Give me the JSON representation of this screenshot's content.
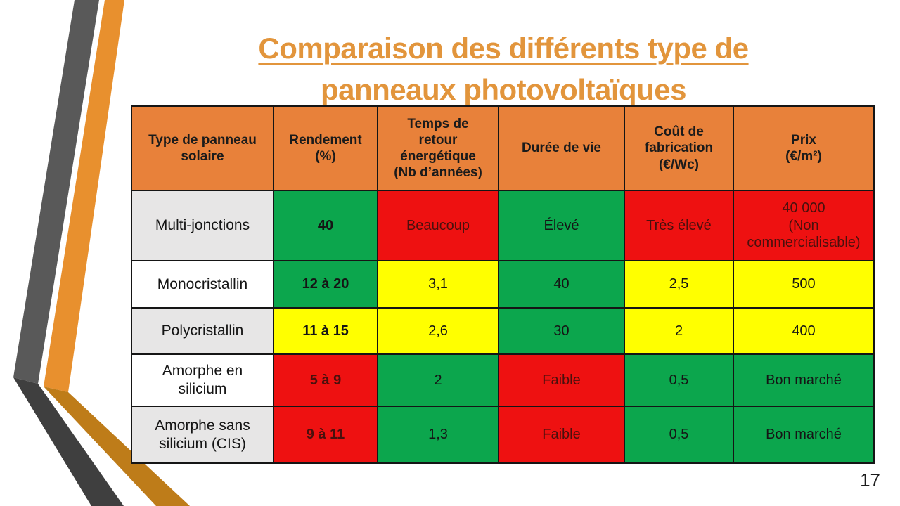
{
  "slide": {
    "title_lines": [
      "Comparaison des différents type de",
      "panneaux photovoltaïques"
    ],
    "page_number": "17"
  },
  "palette": {
    "title_orange": "#E2953C",
    "header_orange": "#E8813A",
    "green": "#0CA64D",
    "red": "#EE1111",
    "yellow": "#FFFF00",
    "gray": "#E7E6E6",
    "white": "#FFFFFF",
    "ribbon_gray": "#595959",
    "ribbon_orange": "#E8902E",
    "ribbon_dark_gray": "#3F3F3F",
    "ribbon_dark_orange": "#BE7C19"
  },
  "table": {
    "headers": [
      "Type de panneau\nsolaire",
      "Rendement\n(%)",
      "Temps de\nretour\nénergétique\n(Nb d’années)",
      "Durée de vie",
      "Coût de\nfabrication\n(€/Wc)",
      "Prix\n(€/m²)"
    ],
    "rows": [
      {
        "label": "Multi-jonctions",
        "label_bg": "gray",
        "cells": [
          {
            "text": "40",
            "color": "green",
            "bold": true
          },
          {
            "text": "Beaucoup",
            "color": "red"
          },
          {
            "text": "Élevé",
            "color": "green"
          },
          {
            "text": "Très élevé",
            "color": "red"
          },
          {
            "text": "40 000\n(Non commercialisable)",
            "color": "red"
          }
        ]
      },
      {
        "label": "Monocristallin",
        "label_bg": "white",
        "cells": [
          {
            "text": "12 à 20",
            "color": "green",
            "bold": true
          },
          {
            "text": "3,1",
            "color": "yellow"
          },
          {
            "text": "40",
            "color": "green"
          },
          {
            "text": "2,5",
            "color": "yellow"
          },
          {
            "text": "500",
            "color": "yellow"
          }
        ]
      },
      {
        "label": "Polycristallin",
        "label_bg": "gray",
        "cells": [
          {
            "text": "11 à 15",
            "color": "yellow",
            "bold": true
          },
          {
            "text": "2,6",
            "color": "yellow"
          },
          {
            "text": "30",
            "color": "green"
          },
          {
            "text": "2",
            "color": "yellow"
          },
          {
            "text": "400",
            "color": "yellow"
          }
        ]
      },
      {
        "label": "Amorphe en silicium",
        "label_bg": "white",
        "cells": [
          {
            "text": "5 à 9",
            "color": "red",
            "bold": true
          },
          {
            "text": "2",
            "color": "green"
          },
          {
            "text": "Faible",
            "color": "red"
          },
          {
            "text": "0,5",
            "color": "green"
          },
          {
            "text": "Bon marché",
            "color": "green"
          }
        ]
      },
      {
        "label": "Amorphe sans silicium (CIS)",
        "label_bg": "gray",
        "cells": [
          {
            "text": "9 à 11",
            "color": "red",
            "bold": true
          },
          {
            "text": "1,3",
            "color": "green"
          },
          {
            "text": "Faible",
            "color": "red"
          },
          {
            "text": "0,5",
            "color": "green"
          },
          {
            "text": "Bon marché",
            "color": "green"
          }
        ]
      }
    ]
  }
}
